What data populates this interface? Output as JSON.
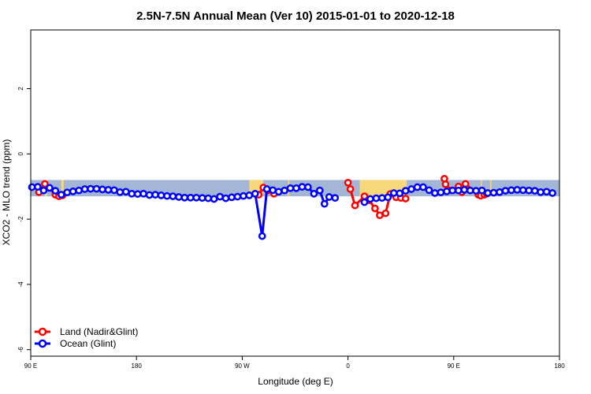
{
  "chart_data": {
    "type": "line",
    "title": "2.5N-7.5N Annual Mean (Ver 10)   2015-01-01 to 2020-12-18",
    "xlabel": "Longitude (deg E)",
    "ylabel": "XCO2 - MLO trend (ppm)",
    "x_ticks": [
      {
        "value": -90,
        "label": "90 E"
      },
      {
        "value": 0,
        "label": "180"
      },
      {
        "value": 90,
        "label": "90 W"
      },
      {
        "value": 180,
        "label": "0"
      },
      {
        "value": 270,
        "label": "90 E"
      },
      {
        "value": 360,
        "label": "180"
      }
    ],
    "y_ticks": [
      -6,
      -4,
      -2,
      0,
      2
    ],
    "xlim": [
      -90,
      360
    ],
    "ylim": [
      -6.2,
      3.8
    ],
    "grid": false,
    "legend_position": "bottom-left",
    "land_band": {
      "ymin": -1.3,
      "ymax": -0.8,
      "ocean_color": "#a3b6d6",
      "land_color": "#f7d87a",
      "land_segments": [
        [
          96,
          108
        ],
        [
          129,
          130
        ],
        [
          190,
          230
        ],
        [
          -64,
          -62
        ],
        [
          -78,
          -76
        ],
        [
          293,
          294
        ],
        [
          301,
          302
        ]
      ]
    },
    "series": [
      {
        "name": "Land (Nadir&Glint)",
        "color": "#ff0000",
        "points": [
          [
            -83,
            -1.17
          ],
          [
            -78,
            -0.92
          ],
          [
            -69,
            -1.25
          ],
          [
            -66,
            -1.3
          ],
          [
            -63,
            -1.27
          ],
          [
            104,
            -1.25
          ],
          [
            108,
            -1.03
          ],
          [
            112,
            -1.12
          ],
          [
            117,
            -1.22
          ],
          [
            180,
            -0.88
          ],
          [
            182,
            -1.08
          ],
          [
            186,
            -1.58
          ],
          [
            194,
            -1.3
          ],
          [
            198,
            -1.42
          ],
          [
            203,
            -1.67
          ],
          [
            207,
            -1.88
          ],
          [
            212,
            -1.82
          ],
          [
            216,
            -1.23
          ],
          [
            221,
            -1.33
          ],
          [
            225,
            -1.35
          ],
          [
            229,
            -1.37
          ],
          [
            262,
            -0.76
          ],
          [
            263,
            -0.93
          ],
          [
            268,
            -1.12
          ],
          [
            274,
            -1.0
          ],
          [
            277,
            -1.17
          ],
          [
            280,
            -0.92
          ],
          [
            291,
            -1.25
          ],
          [
            293,
            -1.28
          ],
          [
            296,
            -1.25
          ],
          [
            298,
            -1.22
          ]
        ]
      },
      {
        "name": "Ocean (Glint)",
        "color": "#0000ff",
        "points": [
          [
            -89,
            -1.02
          ],
          [
            -84,
            -1.01
          ],
          [
            -79,
            -1.12
          ],
          [
            -74,
            -1.04
          ],
          [
            -69,
            -1.13
          ],
          [
            -64,
            -1.25
          ],
          [
            -59,
            -1.18
          ],
          [
            -54,
            -1.15
          ],
          [
            -49,
            -1.12
          ],
          [
            -44,
            -1.08
          ],
          [
            -39,
            -1.07
          ],
          [
            -34,
            -1.07
          ],
          [
            -29,
            -1.09
          ],
          [
            -24,
            -1.1
          ],
          [
            -19,
            -1.11
          ],
          [
            -14,
            -1.17
          ],
          [
            -9,
            -1.16
          ],
          [
            -4,
            -1.22
          ],
          [
            1,
            -1.23
          ],
          [
            6,
            -1.22
          ],
          [
            11,
            -1.26
          ],
          [
            16,
            -1.25
          ],
          [
            21,
            -1.27
          ],
          [
            26,
            -1.29
          ],
          [
            31,
            -1.3
          ],
          [
            36,
            -1.32
          ],
          [
            41,
            -1.34
          ],
          [
            46,
            -1.34
          ],
          [
            51,
            -1.34
          ],
          [
            56,
            -1.35
          ],
          [
            61,
            -1.36
          ],
          [
            66,
            -1.38
          ],
          [
            71,
            -1.31
          ],
          [
            76,
            -1.36
          ],
          [
            81,
            -1.33
          ],
          [
            86,
            -1.31
          ],
          [
            91,
            -1.29
          ],
          [
            96,
            -1.27
          ],
          [
            101,
            -1.22
          ],
          [
            107,
            -2.52
          ],
          [
            111,
            -1.08
          ],
          [
            116,
            -1.11
          ],
          [
            121,
            -1.16
          ],
          [
            126,
            -1.12
          ],
          [
            131,
            -1.05
          ],
          [
            136,
            -1.05
          ],
          [
            141,
            -1.01
          ],
          [
            146,
            -1.02
          ],
          [
            151,
            -1.22
          ],
          [
            156,
            -1.12
          ],
          [
            160,
            -1.53
          ],
          [
            164,
            -1.32
          ],
          [
            169,
            -1.35
          ],
          [
            194,
            -1.48
          ],
          [
            199,
            -1.38
          ],
          [
            204,
            -1.36
          ],
          [
            209,
            -1.35
          ],
          [
            214,
            -1.33
          ],
          [
            219,
            -1.2
          ],
          [
            224,
            -1.21
          ],
          [
            229,
            -1.13
          ],
          [
            234,
            -1.08
          ],
          [
            239,
            -1.02
          ],
          [
            244,
            -1.02
          ],
          [
            249,
            -1.11
          ],
          [
            254,
            -1.2
          ],
          [
            259,
            -1.18
          ],
          [
            264,
            -1.15
          ],
          [
            269,
            -1.12
          ],
          [
            274,
            -1.12
          ],
          [
            279,
            -1.1
          ],
          [
            284,
            -1.12
          ],
          [
            289,
            -1.13
          ],
          [
            294,
            -1.12
          ],
          [
            299,
            -1.2
          ],
          [
            304,
            -1.19
          ],
          [
            309,
            -1.17
          ],
          [
            314,
            -1.13
          ],
          [
            319,
            -1.11
          ],
          [
            324,
            -1.1
          ],
          [
            329,
            -1.11
          ],
          [
            334,
            -1.12
          ],
          [
            339,
            -1.13
          ],
          [
            344,
            -1.17
          ],
          [
            349,
            -1.16
          ],
          [
            354,
            -1.2
          ]
        ]
      }
    ]
  }
}
